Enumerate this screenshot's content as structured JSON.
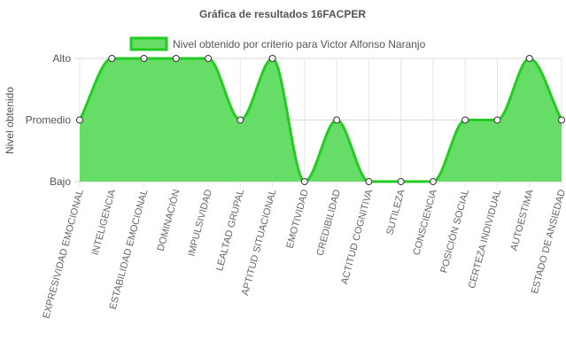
{
  "chart_data": {
    "type": "area",
    "title": "Gráfica de resultados 16FACPER",
    "ylabel": "Nivel obtenido",
    "xlabel": "",
    "y_levels": [
      "Bajo",
      "Promedio",
      "Alto"
    ],
    "ylim": [
      0,
      2
    ],
    "grid": true,
    "legend_position": "top",
    "categories": [
      "EXPRESIVIDAD EMOCIONAL",
      "INTELIGENCIA",
      "ESTABILIDAD EMOCIONAL",
      "DOMINACIÓN",
      "IMPULSIVIDAD",
      "LEALTAD GRUPAL",
      "APTITUD SITUACIONAL",
      "EMOTIVIDAD",
      "CREDIBILIDAD",
      "ACTITUD COGNITIVA",
      "SUTILEZA",
      "CONSCIENCIA",
      "POSICIÓN SOCIAL",
      "CERTEZA INDIVIDUAL",
      "AUTOESTIMA",
      "ESTADO DE ANSIEDAD"
    ],
    "series": [
      {
        "name": "Nivel obtenido por criterio para Victor Alfonso Naranjo",
        "values": [
          1,
          2,
          2,
          2,
          2,
          1,
          2,
          0,
          1,
          0,
          0,
          0,
          1,
          1,
          2,
          1
        ],
        "line_color": "#22cc22",
        "fill_color": "#66dd66"
      }
    ]
  }
}
